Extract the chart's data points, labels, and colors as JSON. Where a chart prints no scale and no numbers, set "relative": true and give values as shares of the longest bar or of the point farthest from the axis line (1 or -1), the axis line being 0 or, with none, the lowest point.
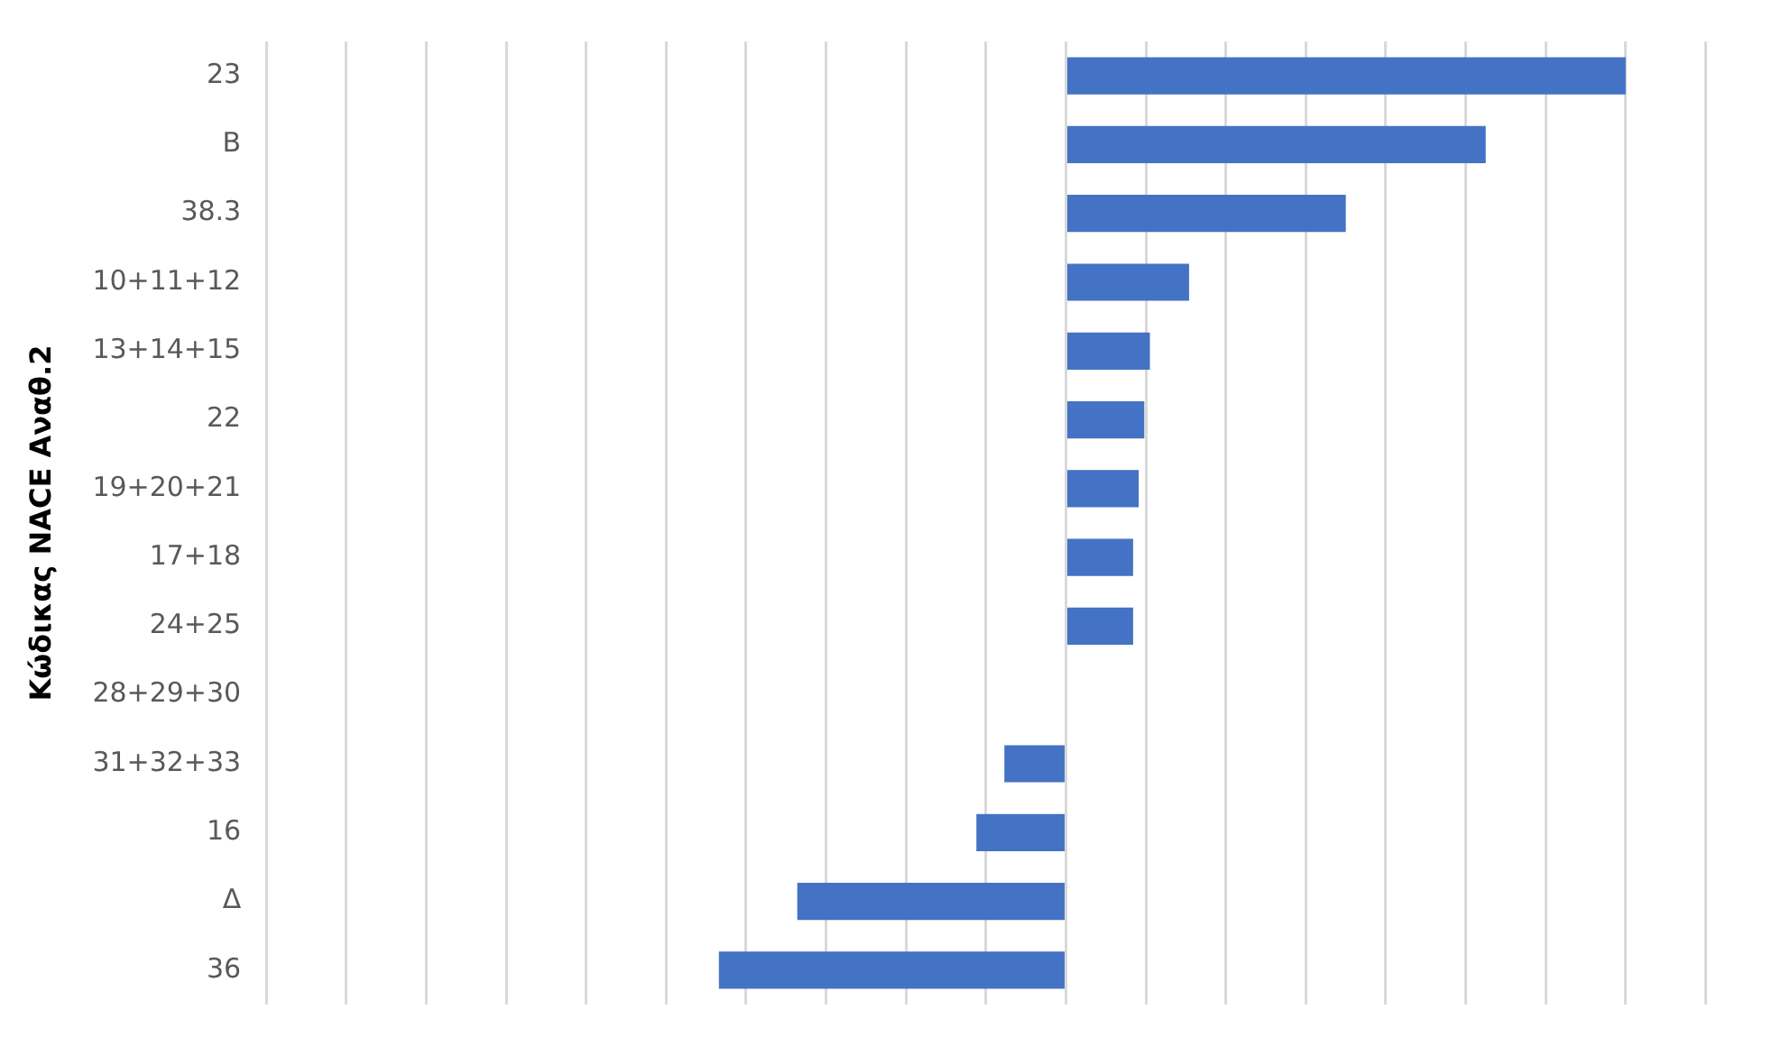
{
  "chart_data": {
    "type": "bar",
    "orientation": "horizontal",
    "relative": true,
    "ylabel": "Κώδικας NACE Αναθ.2",
    "categories": [
      "23",
      "Β",
      "38.3",
      "10+11+12",
      "13+14+15",
      "22",
      "19+20+21",
      "17+18",
      "24+25",
      "28+29+30",
      "31+32+33",
      "16",
      "Δ",
      "36"
    ],
    "values": [
      1,
      0.75,
      0.5,
      0.22,
      0.15,
      0.14,
      0.13,
      0.12,
      0.12,
      0,
      -0.11,
      -0.16,
      -0.48,
      -0.62
    ],
    "color": "#4472c4",
    "grid": "x",
    "legend": false
  }
}
